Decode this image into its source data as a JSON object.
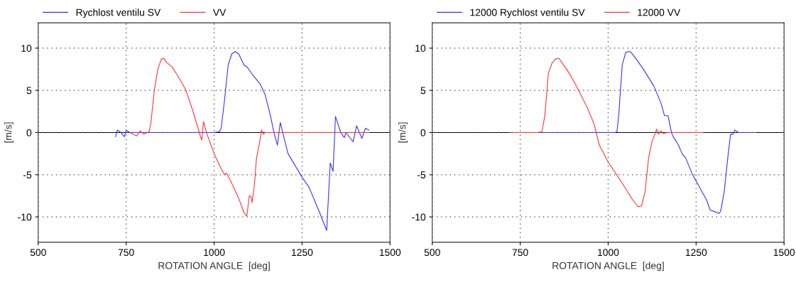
{
  "chart_data": [
    {
      "type": "line",
      "xlabel": "ROTATION ANGLE  [deg]",
      "ylabel": "[m/s]",
      "xlim": [
        500,
        1500
      ],
      "ylim": [
        -13,
        13
      ],
      "xticks": [
        500,
        750,
        1000,
        1250,
        1500
      ],
      "yticks": [
        -10,
        -5,
        0,
        5,
        10
      ],
      "grid": true,
      "legend": "top left",
      "line_style": "solid",
      "marker": "none",
      "ref_lines": [
        {
          "axis": "y",
          "value": 0,
          "color": "#000000"
        }
      ],
      "series": [
        {
          "name": "Rychlost ventilu SV",
          "color": "#3333ff",
          "x": [
            720,
            725,
            735,
            745,
            750,
            760,
            800,
            900,
            1000,
            1015,
            1020,
            1030,
            1040,
            1050,
            1060,
            1070,
            1085,
            1095,
            1110,
            1130,
            1145,
            1160,
            1170,
            1180,
            1188,
            1195,
            1210,
            1250,
            1270,
            1300,
            1320,
            1330,
            1338,
            1345,
            1360,
            1370,
            1375,
            1395,
            1405,
            1415,
            1420,
            1430,
            1440
          ],
          "values": [
            -0.5,
            0.3,
            0,
            -0.5,
            0.3,
            0,
            0,
            0,
            0,
            0.1,
            0.5,
            4,
            8,
            9.3,
            9.6,
            9.3,
            8,
            7.7,
            6.8,
            5.8,
            4.5,
            2,
            0,
            -1.5,
            1.2,
            0,
            -2.5,
            -5.3,
            -6.5,
            -9.5,
            -11.6,
            -3.6,
            -4.6,
            1.9,
            0,
            -0.6,
            0,
            -1.1,
            0.8,
            -0.2,
            -0.7,
            0.5,
            0.3
          ]
        },
        {
          "name": "VV",
          "color": "#ff3333",
          "x": [
            760,
            780,
            790,
            800,
            815,
            820,
            830,
            840,
            850,
            857,
            865,
            880,
            900,
            920,
            940,
            960,
            965,
            970,
            975,
            980,
            1000,
            1020,
            1030,
            1035,
            1050,
            1070,
            1085,
            1093,
            1100,
            1105,
            1108,
            1115,
            1120,
            1130,
            1135,
            1140,
            1145,
            1200,
            1300,
            1440
          ],
          "values": [
            0,
            -0.4,
            0.2,
            -0.2,
            0.1,
            1,
            5,
            7.5,
            8.7,
            8.8,
            8.3,
            7.8,
            6.5,
            5,
            2.5,
            -0.3,
            -0.9,
            1.3,
            0.5,
            -0.2,
            -2.5,
            -4.3,
            -5,
            -4.8,
            -6,
            -7.8,
            -9.5,
            -9.9,
            -7.5,
            -7.6,
            -8.3,
            -6,
            -3.2,
            -1,
            0.3,
            -0.2,
            0,
            0,
            0,
            0
          ]
        }
      ]
    },
    {
      "type": "line",
      "xlabel": "ROTATION ANGLE  [deg]",
      "ylabel": "[m/s]",
      "xlim": [
        500,
        1500
      ],
      "ylim": [
        -13,
        13
      ],
      "xticks": [
        500,
        750,
        1000,
        1250,
        1500
      ],
      "yticks": [
        -10,
        -5,
        0,
        5,
        10
      ],
      "grid": true,
      "legend": "top left",
      "line_style": "solid",
      "marker": "none",
      "ref_lines": [
        {
          "axis": "y",
          "value": 0,
          "color": "#000000"
        }
      ],
      "series": [
        {
          "name": "12000 Rychlost ventilu SV",
          "color": "#3333ff",
          "x": [
            720,
            1000,
            1020,
            1025,
            1030,
            1040,
            1050,
            1060,
            1065,
            1080,
            1100,
            1130,
            1150,
            1160,
            1170,
            1180,
            1185,
            1200,
            1210,
            1220,
            1240,
            1260,
            1280,
            1290,
            1305,
            1315,
            1320,
            1330,
            1340,
            1348,
            1355,
            1360,
            1370,
            1400,
            1420
          ],
          "values": [
            0,
            0,
            0,
            0.1,
            2,
            8,
            9.5,
            9.6,
            9.5,
            8.7,
            7.5,
            5.5,
            3.5,
            2,
            2,
            0,
            -0.5,
            -1.5,
            -2.5,
            -3,
            -5,
            -6.5,
            -8,
            -9.2,
            -9.4,
            -9.6,
            -9.3,
            -7,
            -3,
            -0.2,
            -0.2,
            0.3,
            0,
            0,
            0
          ]
        },
        {
          "name": "12000 VV",
          "color": "#ff3333",
          "x": [
            730,
            800,
            812,
            820,
            830,
            840,
            850,
            860,
            870,
            890,
            910,
            940,
            960,
            975,
            1000,
            1040,
            1070,
            1085,
            1095,
            1105,
            1115,
            1125,
            1130,
            1138,
            1143,
            1150,
            1155,
            1170,
            1180,
            1270
          ],
          "values": [
            0,
            0,
            0.1,
            2,
            7,
            8.2,
            8.7,
            8.8,
            8.2,
            7,
            5.5,
            3,
            1,
            -1.5,
            -3.5,
            -6,
            -8,
            -8.8,
            -8.7,
            -7,
            -3,
            -1,
            -0.5,
            0.4,
            -0.2,
            0.2,
            -0.1,
            0,
            0,
            0
          ]
        }
      ]
    }
  ]
}
